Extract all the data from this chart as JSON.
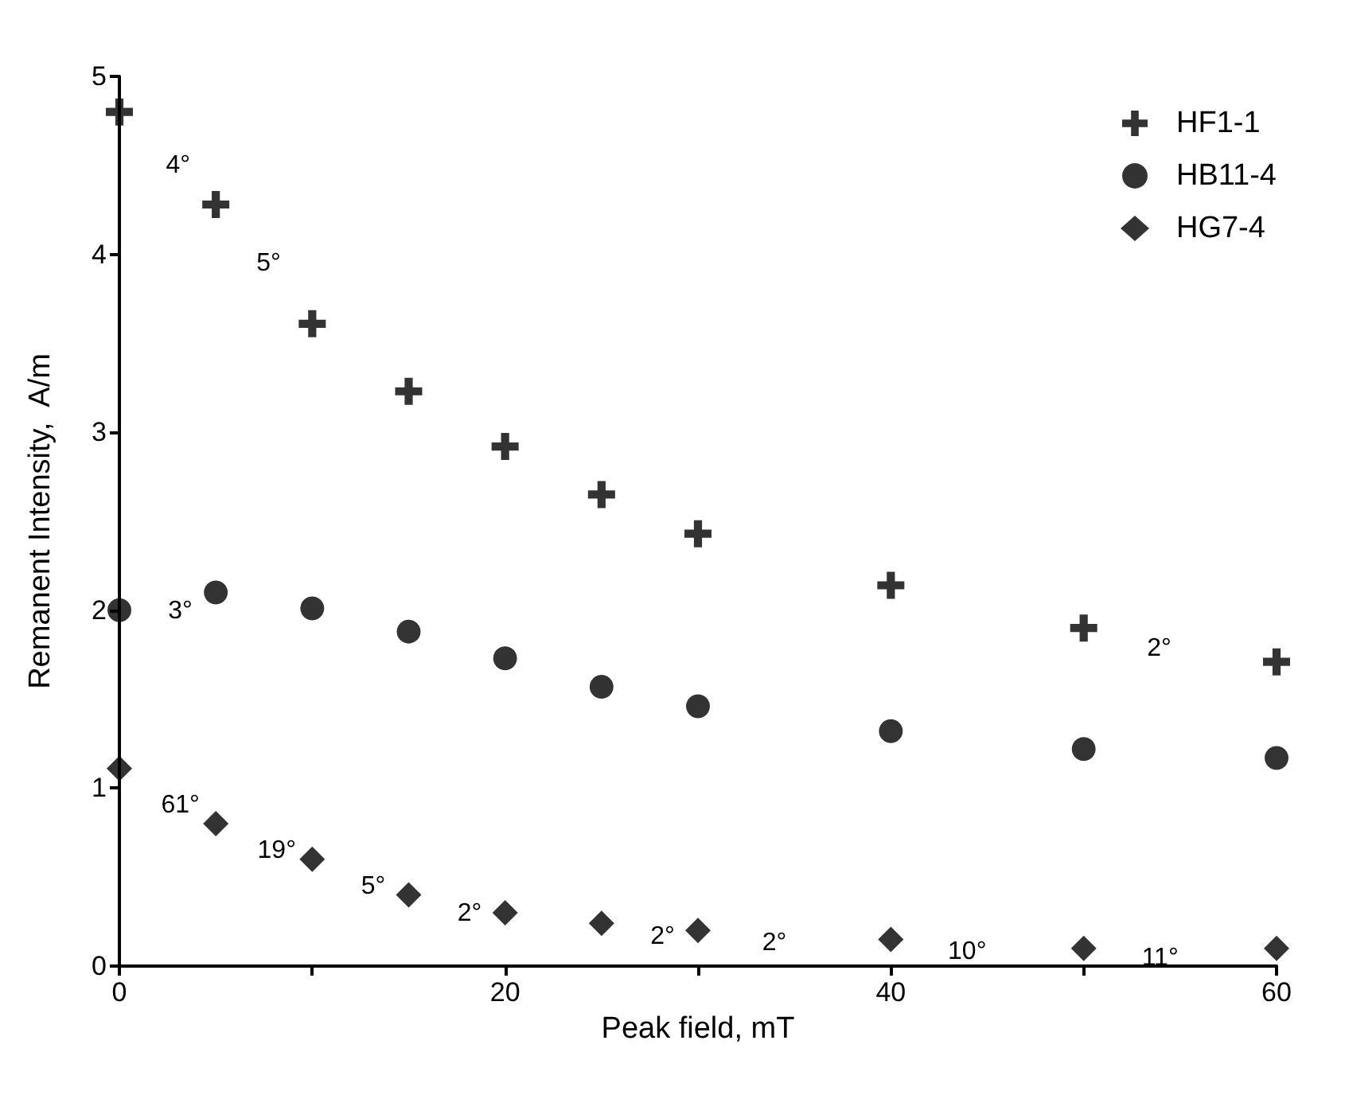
{
  "chart_data": {
    "type": "scatter",
    "xlabel": "Peak field, mT",
    "ylabel": "Remanent Intensity,  A/m",
    "x": [
      0,
      5,
      10,
      15,
      20,
      25,
      30,
      40,
      50,
      60
    ],
    "series": [
      {
        "name": "HF1-1",
        "color": "#000000",
        "marker": "cross",
        "values": [
          4.8,
          4.28,
          3.61,
          3.23,
          2.92,
          2.65,
          2.43,
          2.14,
          1.9,
          1.71
        ]
      },
      {
        "name": "HB11-4",
        "color": "#000000",
        "marker": "circle",
        "values": [
          2.0,
          2.1,
          2.01,
          1.88,
          1.73,
          1.57,
          1.46,
          1.32,
          1.22,
          1.17
        ]
      },
      {
        "name": "HG7-4",
        "color": "#000000",
        "marker": "diamond",
        "values": [
          1.11,
          0.8,
          0.6,
          0.4,
          0.3,
          0.24,
          0.2,
          0.15,
          0.1,
          0.1
        ]
      }
    ],
    "xlim": [
      0,
      60
    ],
    "xticks": [
      0,
      {
        "value": 10,
        "label": null
      },
      20,
      {
        "value": 30,
        "label": null
      },
      40,
      {
        "value": 50,
        "label": null
      },
      60
    ],
    "ylim": [
      0,
      5
    ],
    "yticks": [
      0,
      1,
      2,
      3,
      4,
      5
    ],
    "grid": false,
    "legend": "top right",
    "annotations": [
      {
        "text": "4°",
        "x": 0,
        "y": 4.8
      },
      {
        "text": "5°",
        "x": 5,
        "y": 4.28
      },
      {
        "text": "3°",
        "x": 0,
        "y": 2.0
      },
      {
        "text": "2°",
        "x": 50,
        "y": 1.9
      },
      {
        "text": "61°",
        "x": 0,
        "y": 1.11
      },
      {
        "text": "19°",
        "x": 5,
        "y": 0.8
      },
      {
        "text": "5°",
        "x": 10,
        "y": 0.6
      },
      {
        "text": "2°",
        "x": 15,
        "y": 0.4
      },
      {
        "text": "2°",
        "x": 25,
        "y": 0.24
      },
      {
        "text": "2°",
        "x": 30,
        "y": 0.2
      },
      {
        "text": "10°",
        "x": 40,
        "y": 0.15
      },
      {
        "text": "11°",
        "x": 50,
        "y": 0.1
      }
    ]
  }
}
